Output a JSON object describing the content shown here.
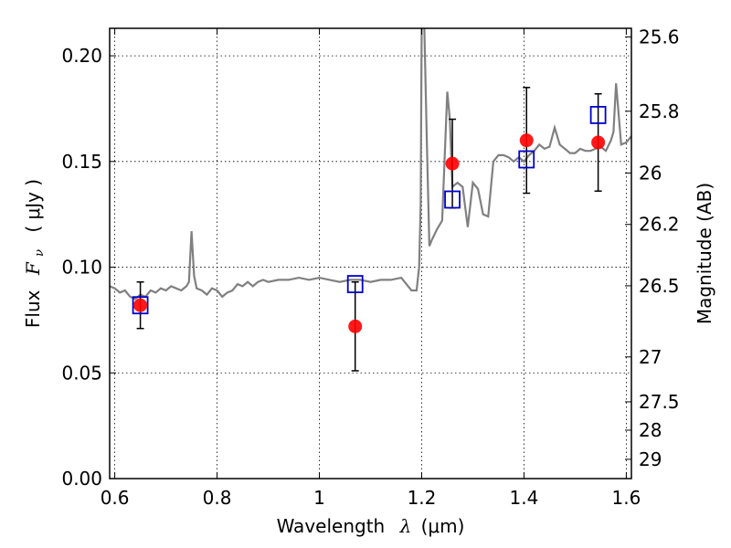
{
  "chart_data": {
    "type": "line",
    "xlabel": "Wavelength",
    "xlabel_symbol": "λ",
    "xlabel_unit": "(μm)",
    "ylabel": "Flux",
    "ylabel_symbol": "F",
    "ylabel_sub": "ν",
    "ylabel_unit": "( μJy )",
    "y2label": "Magnitude (AB)",
    "xlim": [
      0.59,
      1.61
    ],
    "ylim": [
      0.0,
      0.213
    ],
    "grid": true,
    "x_ticks": [
      0.6,
      0.8,
      1.0,
      1.2,
      1.4,
      1.6
    ],
    "x_tick_labels": [
      "0.6",
      "0.8",
      "1",
      "1.2",
      "1.4",
      "1.6"
    ],
    "y_ticks": [
      0.0,
      0.05,
      0.1,
      0.15,
      0.2
    ],
    "y_tick_labels": [
      "0.00",
      "0.05",
      "0.10",
      "0.15",
      "0.20"
    ],
    "y2_ticks": [
      {
        "label": "25.6",
        "value": 25.6
      },
      {
        "label": "25.8",
        "value": 25.8
      },
      {
        "label": "26",
        "value": 26.0
      },
      {
        "label": "26.2",
        "value": 26.2
      },
      {
        "label": "26.5",
        "value": 26.5
      },
      {
        "label": "27",
        "value": 27.0
      },
      {
        "label": "27.5",
        "value": 27.5
      },
      {
        "label": "28",
        "value": 28.0
      },
      {
        "label": "29",
        "value": 29.0
      }
    ],
    "series": [
      {
        "kind": "line",
        "color": "#808080",
        "x": [
          0.59,
          0.6,
          0.61,
          0.62,
          0.63,
          0.64,
          0.65,
          0.66,
          0.67,
          0.68,
          0.69,
          0.7,
          0.71,
          0.72,
          0.73,
          0.74,
          0.745,
          0.75,
          0.755,
          0.76,
          0.77,
          0.78,
          0.79,
          0.8,
          0.81,
          0.82,
          0.83,
          0.84,
          0.85,
          0.86,
          0.87,
          0.88,
          0.89,
          0.9,
          0.92,
          0.94,
          0.96,
          0.98,
          1.0,
          1.02,
          1.04,
          1.06,
          1.08,
          1.1,
          1.12,
          1.14,
          1.16,
          1.18,
          1.19,
          1.195,
          1.198,
          1.2,
          1.205,
          1.21,
          1.215,
          1.22,
          1.23,
          1.24,
          1.25,
          1.255,
          1.26,
          1.27,
          1.28,
          1.29,
          1.3,
          1.31,
          1.32,
          1.33,
          1.34,
          1.35,
          1.36,
          1.37,
          1.38,
          1.39,
          1.4,
          1.41,
          1.42,
          1.43,
          1.44,
          1.45,
          1.46,
          1.47,
          1.48,
          1.49,
          1.5,
          1.51,
          1.52,
          1.53,
          1.54,
          1.55,
          1.56,
          1.57,
          1.575,
          1.58,
          1.59,
          1.6,
          1.61
        ],
        "y": [
          0.091,
          0.09,
          0.088,
          0.089,
          0.086,
          0.085,
          0.087,
          0.086,
          0.089,
          0.088,
          0.09,
          0.089,
          0.091,
          0.09,
          0.089,
          0.091,
          0.093,
          0.117,
          0.096,
          0.09,
          0.089,
          0.087,
          0.09,
          0.089,
          0.086,
          0.088,
          0.089,
          0.092,
          0.091,
          0.093,
          0.091,
          0.093,
          0.094,
          0.093,
          0.094,
          0.094,
          0.095,
          0.094,
          0.095,
          0.094,
          0.093,
          0.094,
          0.094,
          0.093,
          0.094,
          0.094,
          0.095,
          0.089,
          0.089,
          0.1,
          0.13,
          0.215,
          0.215,
          0.16,
          0.11,
          0.113,
          0.118,
          0.122,
          0.183,
          0.17,
          0.138,
          0.14,
          0.138,
          0.119,
          0.14,
          0.137,
          0.125,
          0.124,
          0.15,
          0.153,
          0.153,
          0.152,
          0.15,
          0.152,
          0.15,
          0.153,
          0.155,
          0.158,
          0.156,
          0.157,
          0.166,
          0.158,
          0.156,
          0.154,
          0.154,
          0.156,
          0.155,
          0.155,
          0.156,
          0.157,
          0.155,
          0.16,
          0.164,
          0.187,
          0.158,
          0.159,
          0.162
        ]
      },
      {
        "kind": "errorbar",
        "name": "",
        "color": "#ff0000",
        "points": [
          {
            "x": 0.65,
            "y": 0.082,
            "err": 0.011
          },
          {
            "x": 1.07,
            "y": 0.072,
            "err": 0.021
          },
          {
            "x": 1.26,
            "y": 0.149,
            "err": 0.021
          },
          {
            "x": 1.405,
            "y": 0.16,
            "err": 0.025
          },
          {
            "x": 1.545,
            "y": 0.159,
            "err": 0.023
          }
        ]
      },
      {
        "kind": "marker",
        "name": "",
        "color": "#0000cc",
        "points": [
          {
            "x": 0.65,
            "y": 0.082
          },
          {
            "x": 1.07,
            "y": 0.092
          },
          {
            "x": 1.26,
            "y": 0.132
          },
          {
            "x": 1.405,
            "y": 0.151
          },
          {
            "x": 1.545,
            "y": 0.172
          }
        ]
      }
    ]
  }
}
